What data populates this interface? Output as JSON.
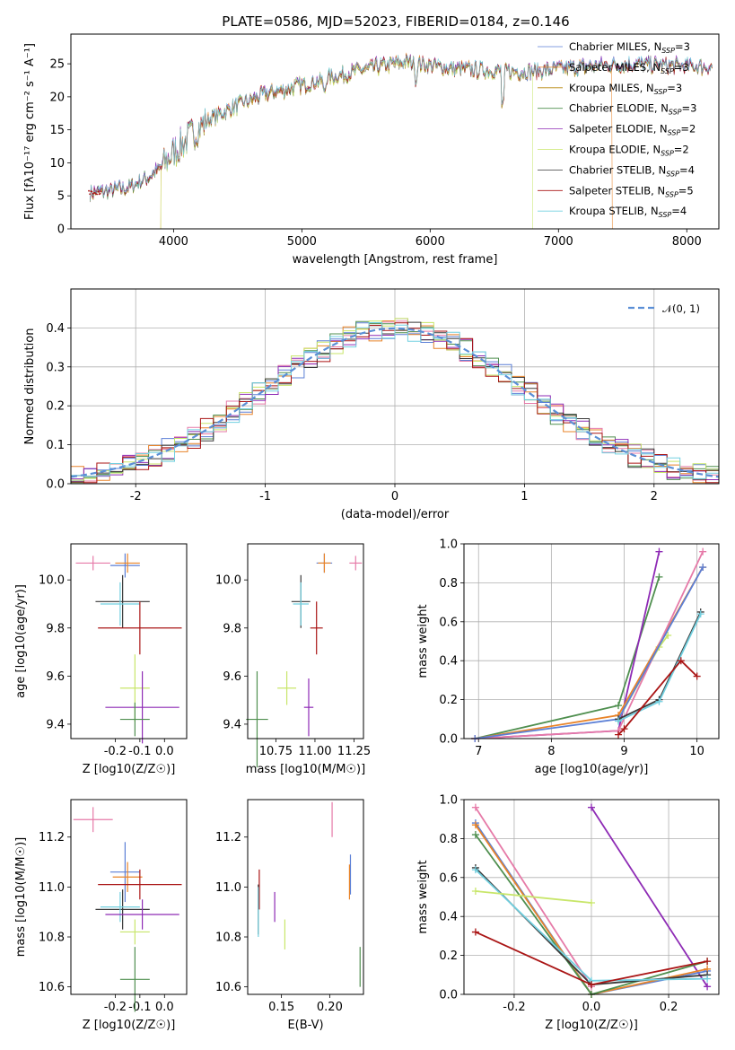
{
  "title": "PLATE=0586, MJD=52023, FIBERID=0184, z=0.146",
  "colors": {
    "chabrier_miles": "#5b7fd6",
    "salpeter_miles": "#e8842a",
    "kroupa_miles": "#b8860b",
    "chabrier_elodie": "#4f8f4f",
    "salpeter_elodie": "#8e2bb5",
    "kroupa_elodie": "#c8e66a",
    "chabrier_stelib": "#3a3a3a",
    "salpeter_stelib": "#aa1515",
    "kroupa_stelib": "#72d0e0",
    "pink": "#e67aa8",
    "gauss": "#5b8fd6"
  },
  "legend_spectrum": [
    {
      "model": "Chabrier MILES",
      "nssp": "=3",
      "color_key": "chabrier_miles"
    },
    {
      "model": "Salpeter MILES",
      "nssp": "=3",
      "color_key": "salpeter_miles"
    },
    {
      "model": "Kroupa MILES",
      "nssp": "=3",
      "color_key": "kroupa_miles"
    },
    {
      "model": "Chabrier ELODIE",
      "nssp": "=3",
      "color_key": "chabrier_elodie"
    },
    {
      "model": "Salpeter ELODIE",
      "nssp": "=2",
      "color_key": "salpeter_elodie"
    },
    {
      "model": "Kroupa ELODIE",
      "nssp": "=2",
      "color_key": "kroupa_elodie"
    },
    {
      "model": "Chabrier STELIB",
      "nssp": "=4",
      "color_key": "chabrier_stelib"
    },
    {
      "model": "Salpeter STELIB",
      "nssp": "=5",
      "color_key": "salpeter_stelib"
    },
    {
      "model": "Kroupa STELIB",
      "nssp": "=4",
      "color_key": "kroupa_stelib"
    }
  ],
  "legend_nssp_prefix": "N",
  "legend_nssp_sub": "SSP",
  "legend_hist": "𝒩(0, 1)",
  "chart_data": [
    {
      "id": "spectrum",
      "type": "line",
      "xlabel": "wavelength [Angstrom, rest frame]",
      "ylabel": "Flux [fλ10⁻¹⁷ erg cm⁻² s⁻¹ A⁻¹]",
      "xlim": [
        3200,
        8250
      ],
      "ylim": [
        0,
        29.5
      ],
      "xticks": [
        4000,
        5000,
        6000,
        7000,
        8000
      ],
      "yticks": [
        0,
        5,
        10,
        15,
        20,
        25
      ],
      "grid": false,
      "legend_position": "top-right",
      "data_shape": [
        [
          3350,
          5.5
        ],
        [
          3500,
          5.8
        ],
        [
          3650,
          6.2
        ],
        [
          3800,
          7.8
        ],
        [
          3900,
          9.2
        ],
        [
          4000,
          11.6
        ],
        [
          4100,
          13.5
        ],
        [
          4200,
          15.3
        ],
        [
          4300,
          16.8
        ],
        [
          4500,
          18.7
        ],
        [
          4700,
          20.3
        ],
        [
          5000,
          21.8
        ],
        [
          5200,
          22.8
        ],
        [
          5400,
          23.8
        ],
        [
          5600,
          24.6
        ],
        [
          5800,
          25.3
        ],
        [
          6000,
          24.8
        ],
        [
          6200,
          24.2
        ],
        [
          6500,
          24.0
        ],
        [
          6800,
          23.8
        ],
        [
          7000,
          24.2
        ],
        [
          7300,
          24.7
        ],
        [
          7600,
          25.0
        ],
        [
          7900,
          24.7
        ],
        [
          8200,
          24.5
        ]
      ],
      "dropouts": [
        [
          3900,
          "salpeter_miles"
        ],
        [
          3900,
          "kroupa_elodie"
        ],
        [
          6800,
          "kroupa_elodie"
        ],
        [
          6800,
          "salpeter_miles"
        ],
        [
          7420,
          "salpeter_miles"
        ]
      ]
    },
    {
      "id": "residual_histogram",
      "type": "bar",
      "xlabel": "(data-model)/error",
      "ylabel": "Normed distribution",
      "xlim": [
        -2.5,
        2.5
      ],
      "ylim": [
        0,
        0.5
      ],
      "xticks": [
        -2,
        -1,
        0,
        1,
        2
      ],
      "yticks": [
        0.0,
        0.1,
        0.2,
        0.3,
        0.4
      ],
      "grid": true,
      "legend_position": "top-right",
      "bin_width": 0.1,
      "reference_curve": "N(0,1)"
    },
    {
      "id": "age_vs_Z",
      "type": "scatter",
      "xlabel": "Z [log10(Z/Z☉)]",
      "ylabel": "age  [log10(age/yr)]",
      "xlim": [
        -0.38,
        0.09
      ],
      "ylim": [
        9.34,
        10.15
      ],
      "xticks": [
        -0.2,
        -0.1,
        0.0
      ],
      "yticks": [
        9.4,
        9.6,
        9.8,
        10.0
      ],
      "points": [
        {
          "key": "chabrier_miles",
          "x": -0.16,
          "y": 10.06,
          "xerr": 0.06,
          "yerr": 0.05
        },
        {
          "key": "salpeter_miles",
          "x": -0.15,
          "y": 10.07,
          "xerr": 0.05,
          "yerr": 0.04
        },
        {
          "key": "pink",
          "x": -0.29,
          "y": 10.07,
          "xerr": 0.07,
          "yerr": 0.03
        },
        {
          "key": "chabrier_stelib",
          "x": -0.17,
          "y": 9.91,
          "xerr": 0.11,
          "yerr": 0.11
        },
        {
          "key": "kroupa_stelib",
          "x": -0.18,
          "y": 9.9,
          "xerr": 0.08,
          "yerr": 0.09
        },
        {
          "key": "salpeter_stelib",
          "x": -0.1,
          "y": 9.8,
          "xerr": 0.17,
          "yerr": 0.11
        },
        {
          "key": "kroupa_elodie",
          "x": -0.12,
          "y": 9.55,
          "xerr": 0.06,
          "yerr": 0.14
        },
        {
          "key": "salpeter_elodie",
          "x": -0.09,
          "y": 9.47,
          "xerr": 0.15,
          "yerr": 0.15
        },
        {
          "key": "chabrier_elodie",
          "x": -0.12,
          "y": 9.42,
          "xerr": 0.06,
          "yerr": 0.07
        }
      ]
    },
    {
      "id": "age_vs_mass",
      "type": "scatter",
      "xlabel": "mass [log10(M/M☉)]",
      "ylabel": "",
      "xlim": [
        10.57,
        11.31
      ],
      "ylim": [
        9.34,
        10.15
      ],
      "xticks": [
        10.75,
        11.0,
        11.25
      ],
      "yticks": [
        9.4,
        9.6,
        9.8,
        10.0
      ],
      "points": [
        {
          "key": "chabrier_miles",
          "x": 11.06,
          "y": 10.07,
          "xerr": 0.05,
          "yerr": 0.04
        },
        {
          "key": "salpeter_miles",
          "x": 11.06,
          "y": 10.07,
          "xerr": 0.04,
          "yerr": 0.04
        },
        {
          "key": "pink",
          "x": 11.26,
          "y": 10.07,
          "xerr": 0.04,
          "yerr": 0.03
        },
        {
          "key": "chabrier_stelib",
          "x": 10.91,
          "y": 9.91,
          "xerr": 0.06,
          "yerr": 0.11
        },
        {
          "key": "kroupa_stelib",
          "x": 10.91,
          "y": 9.9,
          "xerr": 0.05,
          "yerr": 0.09
        },
        {
          "key": "salpeter_stelib",
          "x": 11.01,
          "y": 9.8,
          "xerr": 0.04,
          "yerr": 0.11
        },
        {
          "key": "kroupa_elodie",
          "x": 10.82,
          "y": 9.55,
          "xerr": 0.06,
          "yerr": 0.07
        },
        {
          "key": "salpeter_elodie",
          "x": 10.96,
          "y": 9.47,
          "xerr": 0.03,
          "yerr": 0.12
        },
        {
          "key": "chabrier_elodie",
          "x": 10.63,
          "y": 9.42,
          "xerr": 0.07,
          "yerr": 0.2
        }
      ]
    },
    {
      "id": "mass_weight_vs_age",
      "type": "line",
      "xlabel": "age  [log10(age/yr)]",
      "ylabel": "mass weight",
      "xlim": [
        6.8,
        10.3
      ],
      "ylim": [
        0,
        1.0
      ],
      "xticks": [
        7,
        8,
        9,
        10
      ],
      "yticks": [
        0.0,
        0.2,
        0.4,
        0.6,
        0.8,
        1.0
      ],
      "grid": true,
      "series": [
        {
          "key": "chabrier_elodie",
          "x": [
            6.95,
            8.92,
            9.48
          ],
          "y": [
            0.0,
            0.17,
            0.83
          ]
        },
        {
          "key": "salpeter_elodie",
          "x": [
            6.95,
            8.92,
            9.48
          ],
          "y": [
            0.0,
            0.04,
            0.96
          ]
        },
        {
          "key": "kroupa_elodie",
          "x": [
            8.92,
            9.48,
            9.6
          ],
          "y": [
            0.1,
            0.47,
            0.53
          ]
        },
        {
          "key": "salpeter_miles",
          "x": [
            6.95,
            8.92,
            10.08
          ],
          "y": [
            0.0,
            0.12,
            0.88
          ]
        },
        {
          "key": "pink",
          "x": [
            6.95,
            8.92,
            10.08
          ],
          "y": [
            0.0,
            0.04,
            0.96
          ]
        },
        {
          "key": "chabrier_miles",
          "x": [
            6.95,
            8.92,
            10.08
          ],
          "y": [
            0.0,
            0.1,
            0.88
          ]
        },
        {
          "key": "chabrier_stelib",
          "x": [
            8.92,
            9.48,
            10.05
          ],
          "y": [
            0.1,
            0.2,
            0.65
          ]
        },
        {
          "key": "kroupa_stelib",
          "x": [
            8.92,
            9.48,
            10.05
          ],
          "y": [
            0.09,
            0.19,
            0.64
          ]
        },
        {
          "key": "salpeter_stelib",
          "x": [
            8.92,
            9.0,
            9.78,
            10.0
          ],
          "y": [
            0.02,
            0.05,
            0.4,
            0.32
          ]
        }
      ]
    },
    {
      "id": "mass_vs_Z",
      "type": "scatter",
      "xlabel": "Z [log10(Z/Z☉)]",
      "ylabel": "mass [log10(M/M☉)]",
      "xlim": [
        -0.38,
        0.09
      ],
      "ylim": [
        10.57,
        11.35
      ],
      "xticks": [
        -0.2,
        -0.1,
        0.0
      ],
      "yticks": [
        10.6,
        10.8,
        11.0,
        11.2
      ],
      "points": [
        {
          "key": "pink",
          "x": -0.29,
          "y": 11.27,
          "xerr": 0.08,
          "yerr": 0.05
        },
        {
          "key": "chabrier_miles",
          "x": -0.16,
          "y": 11.06,
          "xerr": 0.06,
          "yerr": 0.12
        },
        {
          "key": "salpeter_miles",
          "x": -0.15,
          "y": 11.04,
          "xerr": 0.06,
          "yerr": 0.06
        },
        {
          "key": "salpeter_stelib",
          "x": -0.1,
          "y": 11.01,
          "xerr": 0.17,
          "yerr": 0.06
        },
        {
          "key": "chabrier_stelib",
          "x": -0.17,
          "y": 10.91,
          "xerr": 0.11,
          "yerr": 0.08
        },
        {
          "key": "kroupa_stelib",
          "x": -0.18,
          "y": 10.92,
          "xerr": 0.08,
          "yerr": 0.06
        },
        {
          "key": "salpeter_elodie",
          "x": -0.09,
          "y": 10.89,
          "xerr": 0.15,
          "yerr": 0.06
        },
        {
          "key": "kroupa_elodie",
          "x": -0.12,
          "y": 10.82,
          "xerr": 0.06,
          "yerr": 0.05
        },
        {
          "key": "chabrier_elodie",
          "x": -0.12,
          "y": 10.63,
          "xerr": 0.06,
          "yerr": 0.13
        }
      ]
    },
    {
      "id": "mass_vs_EBV",
      "type": "scatter",
      "xlabel": "E(B-V)",
      "ylabel": "",
      "xlim": [
        0.115,
        0.235
      ],
      "ylim": [
        10.57,
        11.35
      ],
      "xticks": [
        0.15,
        0.2
      ],
      "yticks": [
        10.6,
        10.8,
        11.0,
        11.2
      ],
      "points": [
        {
          "key": "pink",
          "x": 0.2025,
          "y": 11.27,
          "yerr": 0.07
        },
        {
          "key": "chabrier_miles",
          "x": 0.2215,
          "y": 11.05,
          "yerr": 0.08
        },
        {
          "key": "salpeter_miles",
          "x": 0.2205,
          "y": 11.02,
          "yerr": 0.07
        },
        {
          "key": "salpeter_stelib",
          "x": 0.127,
          "y": 10.99,
          "yerr": 0.08
        },
        {
          "key": "chabrier_stelib",
          "x": 0.126,
          "y": 10.91,
          "yerr": 0.1
        },
        {
          "key": "kroupa_stelib",
          "x": 0.126,
          "y": 10.9,
          "yerr": 0.1
        },
        {
          "key": "salpeter_elodie",
          "x": 0.143,
          "y": 10.92,
          "yerr": 0.06
        },
        {
          "key": "kroupa_elodie",
          "x": 0.1535,
          "y": 10.81,
          "yerr": 0.06
        },
        {
          "key": "chabrier_elodie",
          "x": 0.2315,
          "y": 10.68,
          "yerr": 0.08
        }
      ]
    },
    {
      "id": "mass_weight_vs_Z",
      "type": "line",
      "xlabel": "Z [log10(Z/Z☉)]",
      "ylabel": "mass weight",
      "xlim": [
        -0.33,
        0.33
      ],
      "ylim": [
        0,
        1.0
      ],
      "xticks": [
        -0.2,
        0.0,
        0.2
      ],
      "yticks": [
        0.0,
        0.2,
        0.4,
        0.6,
        0.8,
        1.0
      ],
      "grid": true,
      "series": [
        {
          "key": "salpeter_elodie",
          "x": [
            0.0,
            0.3
          ],
          "y": [
            0.96,
            0.04
          ]
        },
        {
          "key": "pink",
          "x": [
            -0.3,
            0.0
          ],
          "y": [
            0.96,
            0.04
          ]
        },
        {
          "key": "chabrier_miles",
          "x": [
            -0.3,
            0.0,
            0.3
          ],
          "y": [
            0.88,
            0.0,
            0.12
          ]
        },
        {
          "key": "salpeter_miles",
          "x": [
            -0.3,
            0.0,
            0.3
          ],
          "y": [
            0.87,
            0.0,
            0.13
          ]
        },
        {
          "key": "chabrier_elodie",
          "x": [
            -0.3,
            0.0,
            0.3
          ],
          "y": [
            0.82,
            0.0,
            0.17
          ]
        },
        {
          "key": "chabrier_stelib",
          "x": [
            -0.3,
            0.0,
            0.3
          ],
          "y": [
            0.65,
            0.05,
            0.1
          ]
        },
        {
          "key": "kroupa_stelib",
          "x": [
            -0.3,
            0.0,
            0.3
          ],
          "y": [
            0.64,
            0.07,
            0.08
          ]
        },
        {
          "key": "kroupa_elodie",
          "x": [
            -0.3,
            0.0
          ],
          "y": [
            0.53,
            0.47
          ]
        },
        {
          "key": "salpeter_stelib",
          "x": [
            -0.3,
            0.0,
            0.3
          ],
          "y": [
            0.32,
            0.05,
            0.17
          ]
        }
      ]
    }
  ]
}
